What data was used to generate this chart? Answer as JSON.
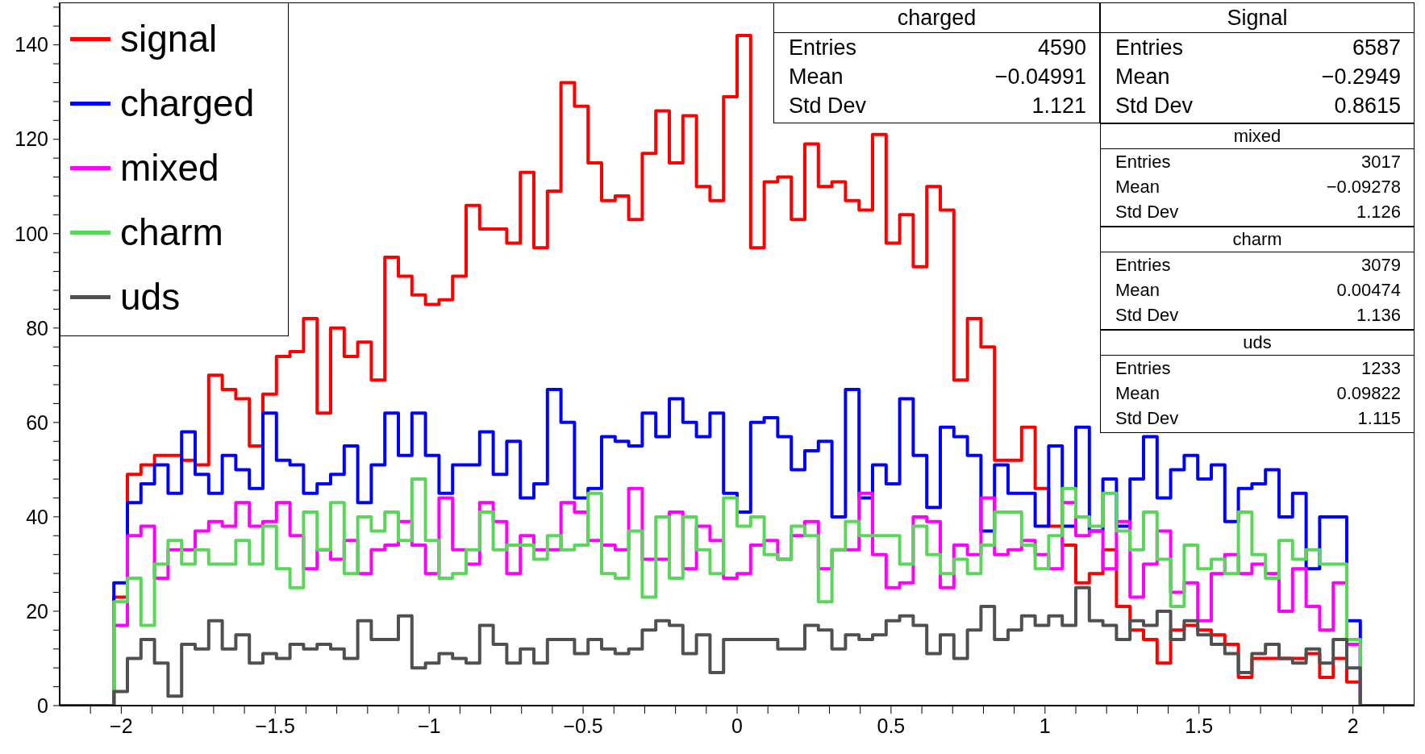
{
  "chart_data": {
    "type": "histogram",
    "bins": [
      -2.2,
      -2.156,
      -2.112,
      -2.068,
      -2.024,
      -1.98,
      -1.936,
      -1.892,
      -1.848,
      -1.804,
      -1.76,
      -1.716,
      -1.672,
      -1.628,
      -1.584,
      -1.54,
      -1.496,
      -1.452,
      -1.408,
      -1.364,
      -1.32,
      -1.276,
      -1.232,
      -1.188,
      -1.144,
      -1.1,
      -1.056,
      -1.012,
      -0.968,
      -0.924,
      -0.88,
      -0.836,
      -0.792,
      -0.748,
      -0.704,
      -0.66,
      -0.616,
      -0.572,
      -0.528,
      -0.484,
      -0.44,
      -0.396,
      -0.352,
      -0.308,
      -0.264,
      -0.22,
      -0.176,
      -0.132,
      -0.088,
      -0.044,
      0,
      0.044,
      0.088,
      0.132,
      0.176,
      0.22,
      0.264,
      0.308,
      0.352,
      0.396,
      0.44,
      0.484,
      0.528,
      0.572,
      0.616,
      0.66,
      0.704,
      0.748,
      0.792,
      0.836,
      0.88,
      0.924,
      0.968,
      1.012,
      1.056,
      1.1,
      1.144,
      1.188,
      1.232,
      1.276,
      1.32,
      1.364,
      1.408,
      1.452,
      1.496,
      1.54,
      1.584,
      1.628,
      1.672,
      1.716,
      1.76,
      1.804,
      1.848,
      1.892,
      1.936,
      1.98,
      2.024,
      2.068,
      2.112,
      2.156,
      2.2
    ],
    "series": [
      {
        "name": "signal",
        "color": "#ff0000",
        "values": [
          0,
          0,
          0,
          0,
          23,
          49,
          51,
          53,
          53,
          52,
          51,
          70,
          67,
          65,
          55,
          66,
          74,
          75,
          82,
          62,
          80,
          74,
          77,
          69,
          95,
          91,
          87,
          85,
          86,
          91,
          106,
          101,
          101,
          98,
          113,
          97,
          109,
          132,
          127,
          115,
          107,
          108,
          103,
          117,
          126,
          115,
          125,
          110,
          107,
          129,
          142,
          97,
          111,
          112,
          103,
          119,
          110,
          111,
          107,
          105,
          121,
          98,
          104,
          93,
          110,
          105,
          69,
          82,
          76,
          52,
          52,
          59,
          46,
          38,
          34,
          26,
          28,
          33,
          21,
          16,
          14,
          9,
          16,
          17,
          16,
          15,
          13,
          6,
          10,
          10,
          10,
          10,
          11,
          6,
          10,
          5,
          0,
          0,
          0,
          0
        ]
      },
      {
        "name": "charged",
        "color": "#0000ff",
        "values": [
          0,
          0,
          0,
          0,
          26,
          43,
          47,
          51,
          45,
          58,
          49,
          45,
          53,
          50,
          46,
          62,
          52,
          51,
          45,
          47,
          49,
          55,
          43,
          51,
          62,
          53,
          62,
          53,
          45,
          51,
          51,
          58,
          49,
          56,
          44,
          47,
          67,
          60,
          44,
          46,
          57,
          56,
          55,
          62,
          57,
          65,
          60,
          57,
          62,
          45,
          41,
          60,
          61,
          57,
          50,
          54,
          56,
          40,
          67,
          44,
          51,
          47,
          65,
          53,
          42,
          59,
          57,
          53,
          37,
          51,
          45,
          45,
          38,
          55,
          38,
          59,
          37,
          48,
          38,
          48,
          57,
          44,
          50,
          53,
          48,
          51,
          39,
          46,
          47,
          50,
          40,
          45,
          29,
          40,
          40,
          18,
          0,
          0,
          0,
          0
        ]
      },
      {
        "name": "mixed",
        "color": "#ff00ff",
        "values": [
          0,
          0,
          0,
          0,
          17,
          36,
          38,
          27,
          33,
          33,
          37,
          39,
          38,
          43,
          38,
          39,
          43,
          36,
          29,
          33,
          31,
          35,
          28,
          33,
          34,
          39,
          34,
          28,
          44,
          33,
          30,
          43,
          39,
          28,
          36,
          33,
          33,
          43,
          41,
          35,
          34,
          33,
          46,
          31,
          31,
          41,
          29,
          38,
          35,
          27,
          28,
          34,
          35,
          31,
          36,
          39,
          29,
          33,
          33,
          45,
          32,
          25,
          26,
          40,
          39,
          25,
          34,
          32,
          44,
          32,
          33,
          35,
          32,
          29,
          43,
          36,
          37,
          29,
          39,
          23,
          30,
          37,
          24,
          26,
          18,
          28,
          32,
          28,
          30,
          28,
          20,
          29,
          21,
          16,
          26,
          13,
          0,
          0,
          0,
          0
        ]
      },
      {
        "name": "charm",
        "color": "#5ad75a",
        "values": [
          0,
          0,
          0,
          0,
          22,
          27,
          17,
          30,
          35,
          30,
          33,
          30,
          30,
          35,
          30,
          38,
          29,
          25,
          41,
          33,
          43,
          28,
          40,
          37,
          41,
          35,
          48,
          35,
          27,
          28,
          33,
          41,
          33,
          34,
          34,
          31,
          36,
          33,
          34,
          45,
          28,
          27,
          37,
          23,
          40,
          27,
          40,
          33,
          28,
          44,
          38,
          40,
          32,
          31,
          38,
          36,
          22,
          33,
          39,
          36,
          36,
          36,
          30,
          38,
          32,
          28,
          31,
          28,
          34,
          41,
          41,
          34,
          29,
          36,
          46,
          40,
          38,
          45,
          37,
          33,
          41,
          31,
          21,
          34,
          29,
          31,
          28,
          41,
          32,
          27,
          35,
          31,
          33,
          30,
          30,
          14,
          0,
          0,
          0,
          0
        ]
      },
      {
        "name": "uds",
        "color": "#505050",
        "values": [
          0,
          0,
          0,
          0,
          3,
          10,
          14,
          9,
          2,
          13,
          12,
          18,
          12,
          15,
          9,
          11,
          10,
          13,
          12,
          13,
          12,
          10,
          18,
          14,
          14,
          19,
          8,
          9,
          11,
          10,
          9,
          17,
          13,
          9,
          12,
          9,
          14,
          14,
          11,
          14,
          12,
          11,
          12,
          16,
          18,
          17,
          11,
          15,
          7,
          14,
          14,
          14,
          14,
          12,
          12,
          17,
          16,
          12,
          15,
          14,
          15,
          18,
          19,
          17,
          11,
          15,
          10,
          16,
          21,
          14,
          16,
          19,
          17,
          19,
          17,
          25,
          18,
          17,
          14,
          18,
          17,
          20,
          14,
          18,
          15,
          13,
          11,
          7,
          11,
          13,
          10,
          9,
          12,
          9,
          14,
          8,
          0,
          0,
          0,
          0
        ]
      }
    ],
    "xlim": [
      -2.2,
      2.2
    ],
    "xticks": [
      {
        "value": -2.1,
        "label": null
      },
      {
        "value": -2,
        "label": "−2"
      },
      {
        "value": -1.9,
        "label": null
      },
      {
        "value": -1.8,
        "label": null
      },
      {
        "value": -1.7,
        "label": null
      },
      {
        "value": -1.6,
        "label": null
      },
      {
        "value": -1.5,
        "label": "−1.5"
      },
      {
        "value": -1.4,
        "label": null
      },
      {
        "value": -1.3,
        "label": null
      },
      {
        "value": -1.2,
        "label": null
      },
      {
        "value": -1.1,
        "label": null
      },
      {
        "value": -1,
        "label": "−1"
      },
      {
        "value": -0.9,
        "label": null
      },
      {
        "value": -0.8,
        "label": null
      },
      {
        "value": -0.7,
        "label": null
      },
      {
        "value": -0.6,
        "label": null
      },
      {
        "value": -0.5,
        "label": "−0.5"
      },
      {
        "value": -0.4,
        "label": null
      },
      {
        "value": -0.3,
        "label": null
      },
      {
        "value": -0.2,
        "label": null
      },
      {
        "value": -0.1,
        "label": null
      },
      0,
      {
        "value": 0.1,
        "label": null
      },
      {
        "value": 0.2,
        "label": null
      },
      {
        "value": 0.3,
        "label": null
      },
      {
        "value": 0.4,
        "label": null
      },
      0.5,
      {
        "value": 0.6,
        "label": null
      },
      {
        "value": 0.7,
        "label": null
      },
      {
        "value": 0.8,
        "label": null
      },
      {
        "value": 0.9,
        "label": null
      },
      1,
      {
        "value": 1.1,
        "label": null
      },
      {
        "value": 1.2,
        "label": null
      },
      {
        "value": 1.3,
        "label": null
      },
      {
        "value": 1.4,
        "label": null
      },
      1.5,
      {
        "value": 1.6,
        "label": null
      },
      {
        "value": 1.7,
        "label": null
      },
      {
        "value": 1.8,
        "label": null
      },
      {
        "value": 1.9,
        "label": null
      },
      2,
      {
        "value": 2.1,
        "label": null
      }
    ],
    "ylim": [
      0,
      149
    ],
    "yticks": [
      0,
      {
        "value": 4,
        "label": null
      },
      {
        "value": 8,
        "label": null
      },
      {
        "value": 12,
        "label": null
      },
      {
        "value": 16,
        "label": null
      },
      20,
      {
        "value": 24,
        "label": null
      },
      {
        "value": 28,
        "label": null
      },
      {
        "value": 32,
        "label": null
      },
      {
        "value": 36,
        "label": null
      },
      40,
      {
        "value": 44,
        "label": null
      },
      {
        "value": 48,
        "label": null
      },
      {
        "value": 52,
        "label": null
      },
      {
        "value": 56,
        "label": null
      },
      60,
      {
        "value": 64,
        "label": null
      },
      {
        "value": 68,
        "label": null
      },
      {
        "value": 72,
        "label": null
      },
      {
        "value": 76,
        "label": null
      },
      80,
      {
        "value": 84,
        "label": null
      },
      {
        "value": 88,
        "label": null
      },
      {
        "value": 92,
        "label": null
      },
      {
        "value": 96,
        "label": null
      },
      100,
      {
        "value": 104,
        "label": null
      },
      {
        "value": 108,
        "label": null
      },
      {
        "value": 112,
        "label": null
      },
      {
        "value": 116,
        "label": null
      },
      120,
      {
        "value": 124,
        "label": null
      },
      {
        "value": 128,
        "label": null
      },
      {
        "value": 132,
        "label": null
      },
      {
        "value": 136,
        "label": null
      },
      140,
      {
        "value": 144,
        "label": null
      },
      {
        "value": 148,
        "label": null
      }
    ],
    "legend": "top left",
    "annotations": [
      "charged",
      "Entries 4590",
      "Mean −0.04991",
      "Std Dev 1.121",
      "Signal",
      "Entries 6587",
      "Mean −0.2949",
      "Std Dev 0.8615",
      "mixed",
      "Entries 3017",
      "Mean −0.09278",
      "Std Dev 1.126",
      "charm",
      "Entries 3079",
      "Mean 0.00474",
      "Std Dev 1.136",
      "uds",
      "Entries 1233",
      "Mean 0.09822",
      "Std Dev 1.115"
    ]
  }
}
